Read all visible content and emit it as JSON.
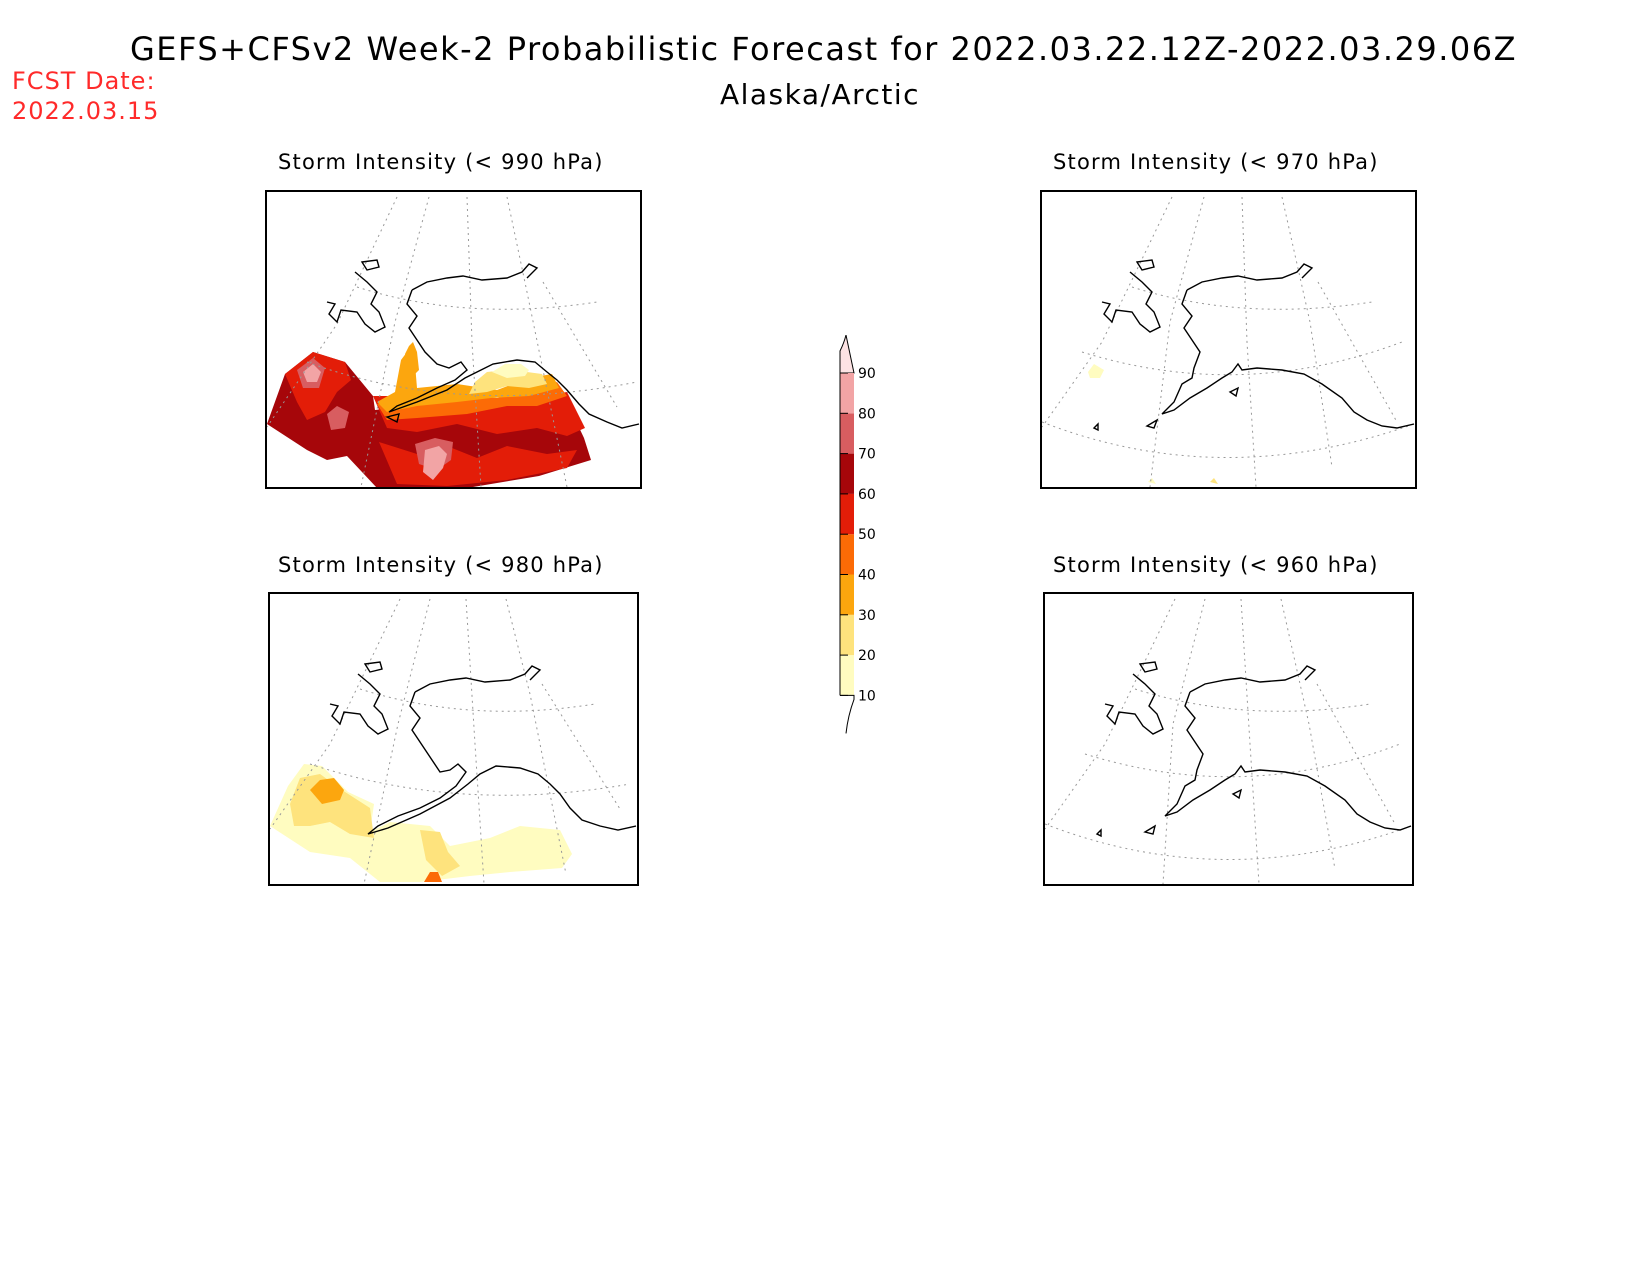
{
  "title": "GEFS+CFSv2 Week-2 Probabilistic Forecast for 2022.03.22.12Z-2022.03.29.06Z",
  "subtitle": "Alaska/Arctic",
  "forecast_date_label": "FCST Date:",
  "forecast_date": "2022.03.15",
  "panels": [
    {
      "title": "Storm Intensity (< 990 hPa)",
      "threshold": "990"
    },
    {
      "title": "Storm Intensity (< 970 hPa)",
      "threshold": "970"
    },
    {
      "title": "Storm Intensity (< 980 hPa)",
      "threshold": "980"
    },
    {
      "title": "Storm Intensity (< 960 hPa)",
      "threshold": "960"
    }
  ],
  "legend": {
    "levels": [
      "10",
      "20",
      "30",
      "40",
      "50",
      "60",
      "70",
      "80",
      "90"
    ],
    "colors": [
      "#fffcc0",
      "#fee37d",
      "#fca60e",
      "#fc6b06",
      "#e31d08",
      "#a6060a",
      "#d85d60",
      "#f2a4a5",
      "#fde3e4"
    ],
    "above_color": "#fde3e4",
    "below_color": "#ffffff"
  }
}
